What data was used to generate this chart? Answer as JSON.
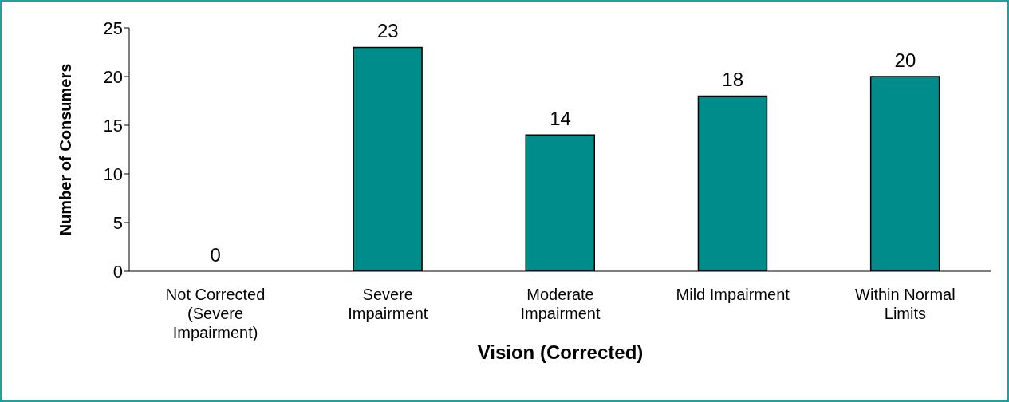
{
  "chart_data": {
    "type": "bar",
    "xlabel": "Vision (Corrected)",
    "ylabel": "Number of Consumers",
    "categories": [
      "Not Corrected (Severe Impairment)",
      "Severe Impairment",
      "Moderate Impairment",
      "Mild Impairment",
      "Within Normal Limits"
    ],
    "values": [
      0,
      23,
      14,
      18,
      20
    ],
    "color": "#008c8a",
    "ylim": [
      0,
      25
    ],
    "yticks": [
      0,
      5,
      10,
      15,
      20,
      25
    ],
    "data_labels": true,
    "grid": false,
    "legend": false
  }
}
